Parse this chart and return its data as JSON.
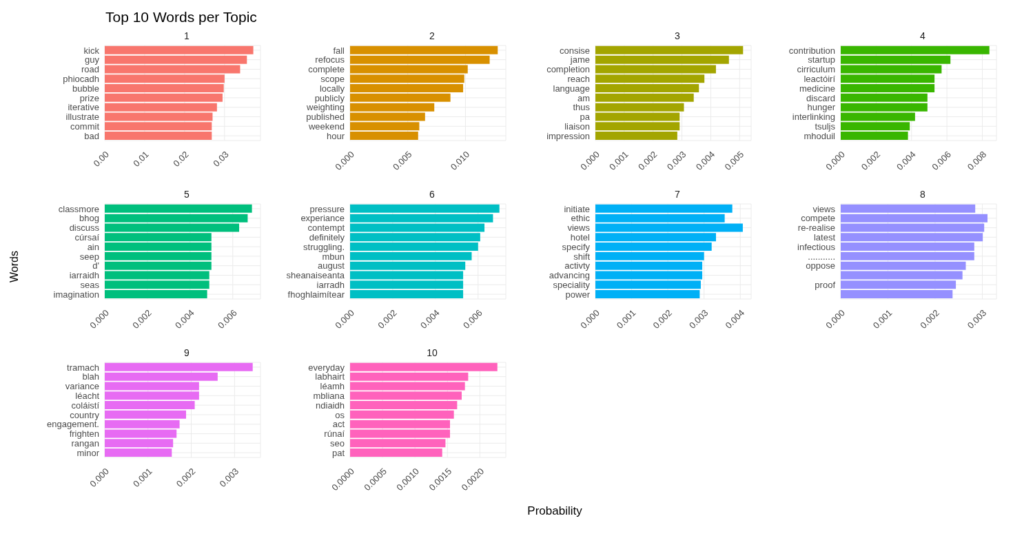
{
  "chart_data": [
    {
      "type": "bar",
      "orientation": "horizontal",
      "title": "1",
      "annotations": [
        "Top 10 Words per Topic"
      ],
      "categories": [
        "kick",
        "guy",
        "road",
        "phiocadh",
        "bubble",
        "prize",
        "iterative",
        "illustrate",
        "commit",
        "bad"
      ],
      "values": [
        0.0372,
        0.0356,
        0.0339,
        0.03,
        0.0298,
        0.0295,
        0.0281,
        0.027,
        0.0268,
        0.0268
      ],
      "color": "#f8766d",
      "xlim": [
        0,
        0.039
      ],
      "xticks": [
        {
          "value": 0,
          "label": "0.00"
        },
        {
          "value": 0.01,
          "label": "0.01"
        },
        {
          "value": 0.02,
          "label": "0.02"
        },
        {
          "value": 0.03,
          "label": "0.03"
        }
      ],
      "grid": true
    },
    {
      "type": "bar",
      "orientation": "horizontal",
      "title": "2",
      "categories": [
        "fall",
        "refocus",
        "complete",
        "scope",
        "locally",
        "publicly",
        "weighting",
        "published",
        "weekend",
        "hour"
      ],
      "values": [
        0.0128,
        0.0121,
        0.0102,
        0.0099,
        0.0098,
        0.0087,
        0.0073,
        0.0065,
        0.006,
        0.0059
      ],
      "color": "#d89000",
      "xlim": [
        0,
        0.0135
      ],
      "xticks": [
        {
          "value": 0,
          "label": "0.000"
        },
        {
          "value": 0.005,
          "label": "0.005"
        },
        {
          "value": 0.01,
          "label": "0.010"
        }
      ],
      "grid": true
    },
    {
      "type": "bar",
      "orientation": "horizontal",
      "title": "3",
      "categories": [
        "consise",
        "jame",
        "completion",
        "reach",
        "language",
        "am",
        "thus",
        "pa",
        "liaison",
        "impression"
      ],
      "values": [
        0.00512,
        0.00463,
        0.00418,
        0.00378,
        0.00359,
        0.00341,
        0.00307,
        0.00292,
        0.00292,
        0.00284
      ],
      "color": "#a3a500",
      "xlim": [
        0,
        0.0054
      ],
      "xticks": [
        {
          "value": 0,
          "label": "0.000"
        },
        {
          "value": 0.001,
          "label": "0.001"
        },
        {
          "value": 0.002,
          "label": "0.002"
        },
        {
          "value": 0.003,
          "label": "0.003"
        },
        {
          "value": 0.004,
          "label": "0.004"
        },
        {
          "value": 0.005,
          "label": "0.005"
        }
      ],
      "grid": true
    },
    {
      "type": "bar",
      "orientation": "horizontal",
      "title": "4",
      "categories": [
        "contribution",
        "startup",
        "cirriculum",
        "leactóirí",
        "medicine",
        "discard",
        "hunger",
        "interlinking",
        "tsuljs",
        "mhoduil"
      ],
      "values": [
        0.0084,
        0.0062,
        0.0057,
        0.0053,
        0.0053,
        0.0049,
        0.0049,
        0.0042,
        0.0039,
        0.0038
      ],
      "color": "#39b600",
      "xlim": [
        0,
        0.0088
      ],
      "xticks": [
        {
          "value": 0,
          "label": "0.000"
        },
        {
          "value": 0.002,
          "label": "0.002"
        },
        {
          "value": 0.004,
          "label": "0.004"
        },
        {
          "value": 0.006,
          "label": "0.006"
        },
        {
          "value": 0.008,
          "label": "0.008"
        }
      ],
      "grid": true
    },
    {
      "type": "bar",
      "orientation": "horizontal",
      "title": "5",
      "ylabel": "Words",
      "categories": [
        "classmore",
        "bhog",
        "discuss",
        "cúrsaí",
        "ain",
        "seep",
        "d'",
        "iarraidh",
        "seas",
        "imagination"
      ],
      "values": [
        0.0069,
        0.0067,
        0.0063,
        0.005,
        0.005,
        0.005,
        0.005,
        0.0049,
        0.0049,
        0.0048
      ],
      "color": "#00bf7d",
      "xlim": [
        0,
        0.0073
      ],
      "xticks": [
        {
          "value": 0,
          "label": "0.000"
        },
        {
          "value": 0.002,
          "label": "0.002"
        },
        {
          "value": 0.004,
          "label": "0.004"
        },
        {
          "value": 0.006,
          "label": "0.006"
        }
      ],
      "grid": true
    },
    {
      "type": "bar",
      "orientation": "horizontal",
      "title": "6",
      "categories": [
        "pressure",
        "experiance",
        "contempt",
        "definitely",
        "struggling.",
        "mbun",
        "august",
        "sheanaiseanta",
        "iarradh",
        "fhoghlaimítear"
      ],
      "values": [
        0.007,
        0.0067,
        0.0063,
        0.0061,
        0.006,
        0.0057,
        0.0054,
        0.0053,
        0.0053,
        0.0053
      ],
      "color": "#00bfc4",
      "xlim": [
        0,
        0.0073
      ],
      "xticks": [
        {
          "value": 0,
          "label": "0.000"
        },
        {
          "value": 0.002,
          "label": "0.002"
        },
        {
          "value": 0.004,
          "label": "0.004"
        },
        {
          "value": 0.006,
          "label": "0.006"
        }
      ],
      "grid": true
    },
    {
      "type": "bar",
      "orientation": "horizontal",
      "title": "7",
      "categories": [
        "initiate",
        "ethic",
        "views",
        "hotel",
        "specify",
        "shift",
        "activty",
        "advancing",
        "speciality",
        "power"
      ],
      "values": [
        0.00378,
        0.00357,
        0.00407,
        0.00333,
        0.00321,
        0.003,
        0.00295,
        0.00295,
        0.00291,
        0.00288
      ],
      "color": "#00b0f6",
      "xlim": [
        0,
        0.0043
      ],
      "xticks": [
        {
          "value": 0,
          "label": "0.000"
        },
        {
          "value": 0.001,
          "label": "0.001"
        },
        {
          "value": 0.002,
          "label": "0.002"
        },
        {
          "value": 0.003,
          "label": "0.003"
        },
        {
          "value": 0.004,
          "label": "0.004"
        }
      ],
      "grid": true
    },
    {
      "type": "bar",
      "orientation": "horizontal",
      "title": "8",
      "categories": [
        "views",
        "compete",
        "re-realise",
        "latest",
        "infectious",
        "...........",
        "oppose",
        null,
        "proof",
        null
      ],
      "values": [
        0.00285,
        0.00311,
        0.00304,
        0.00301,
        0.00283,
        0.00283,
        0.00265,
        0.00258,
        0.00244,
        0.00237
      ],
      "color": "#9590ff",
      "xlim": [
        0,
        0.0033
      ],
      "xticks": [
        {
          "value": 0,
          "label": "0.000"
        },
        {
          "value": 0.001,
          "label": "0.001"
        },
        {
          "value": 0.002,
          "label": "0.002"
        },
        {
          "value": 0.003,
          "label": "0.003"
        }
      ],
      "grid": true
    },
    {
      "type": "bar",
      "orientation": "horizontal",
      "title": "9",
      "categories": [
        "tramach",
        "blah",
        "variance",
        "léacht",
        "coláistí",
        "country",
        "engagement.",
        "frighten",
        "rangan",
        "minor"
      ],
      "values": [
        0.00342,
        0.00261,
        0.00218,
        0.00218,
        0.00208,
        0.00188,
        0.00173,
        0.00166,
        0.00158,
        0.00155
      ],
      "color": "#e76bf3",
      "xlim": [
        0,
        0.0036
      ],
      "xticks": [
        {
          "value": 0,
          "label": "0.000"
        },
        {
          "value": 0.001,
          "label": "0.001"
        },
        {
          "value": 0.002,
          "label": "0.002"
        },
        {
          "value": 0.003,
          "label": "0.003"
        }
      ],
      "grid": true
    },
    {
      "type": "bar",
      "orientation": "horizontal",
      "title": "10",
      "xlabel": "Probability",
      "categories": [
        "everyday",
        "labhairt",
        "léamh",
        "mbliana",
        "ndiaidh",
        "os",
        "act",
        "rúnaí",
        "seo",
        "pat"
      ],
      "values": [
        0.00227,
        0.00182,
        0.00177,
        0.00172,
        0.00165,
        0.0016,
        0.00154,
        0.00154,
        0.00147,
        0.00142
      ],
      "color": "#ff62bc",
      "xlim": [
        0,
        0.0024
      ],
      "xticks": [
        {
          "value": 0,
          "label": "0.0000"
        },
        {
          "value": 0.0005,
          "label": "0.0005"
        },
        {
          "value": 0.001,
          "label": "0.0010"
        },
        {
          "value": 0.0015,
          "label": "0.0015"
        },
        {
          "value": 0.002,
          "label": "0.0020"
        }
      ],
      "grid": true
    }
  ]
}
